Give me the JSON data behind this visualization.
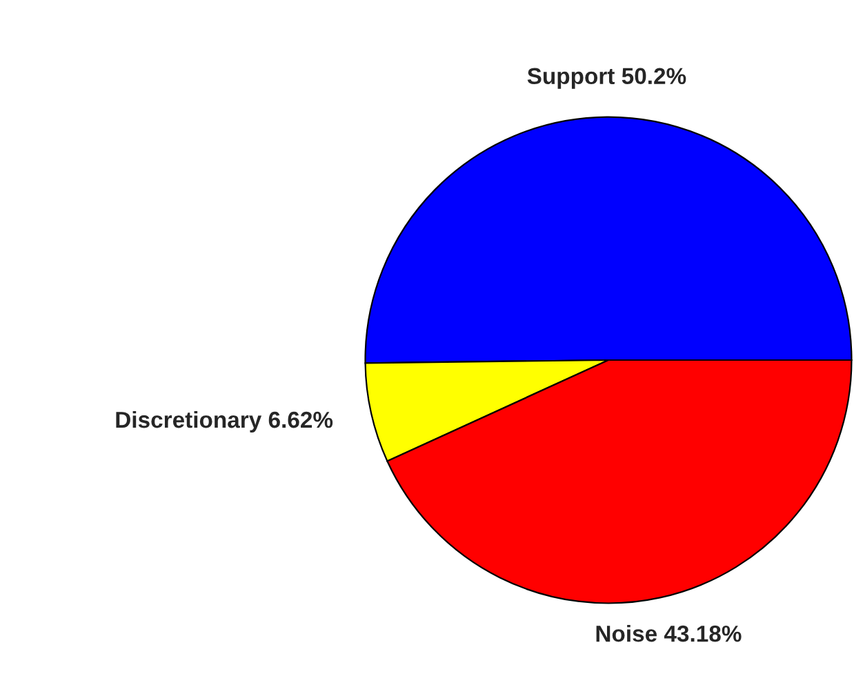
{
  "chart_data": {
    "type": "pie",
    "categories": [
      "Support",
      "Discretionary",
      "Noise"
    ],
    "values": [
      50.2,
      6.62,
      43.18
    ],
    "value_labels": [
      "50.2%",
      "6.62%",
      "43.18%"
    ],
    "colors": [
      "#0000ff",
      "#ffff00",
      "#ff0000"
    ],
    "legend": false
  }
}
